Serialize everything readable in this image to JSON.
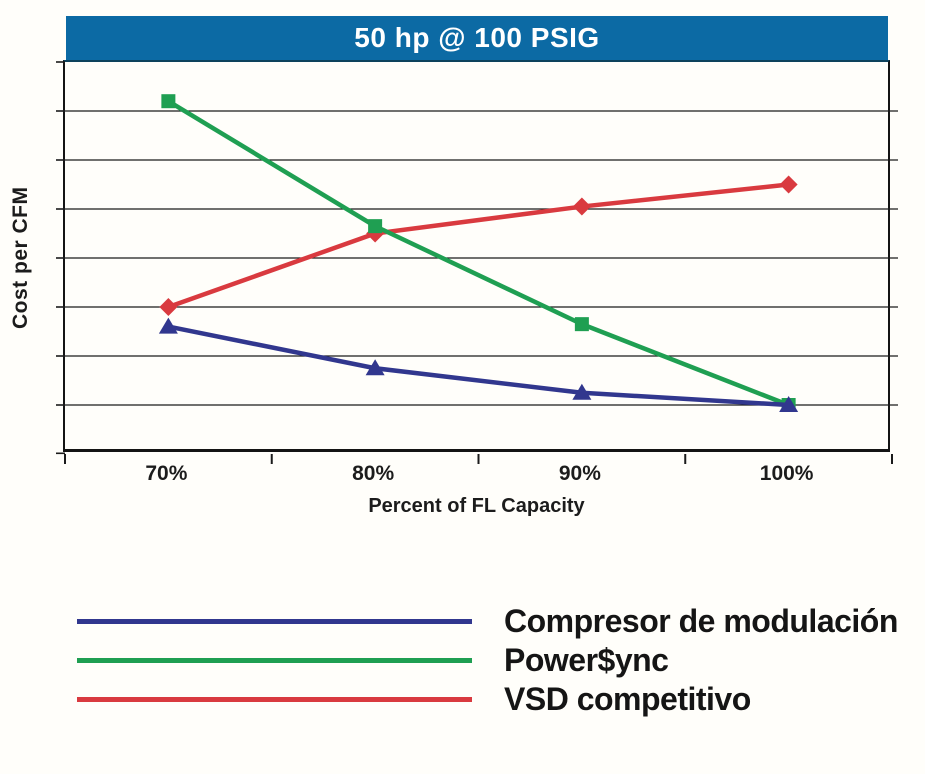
{
  "colors": {
    "title_bar": "#0c6aa4",
    "title_text": "#ffffff",
    "blue": "#31378e",
    "green": "#1f9f52",
    "red": "#d93a3f",
    "grid": "#1b1b1b",
    "text": "#1c1c1c"
  },
  "chart_data": {
    "type": "line",
    "title": "50 hp @ 100 PSIG",
    "x": [
      "70%",
      "80%",
      "90%",
      "100%"
    ],
    "xlabel": "Percent of FL Capacity",
    "ylabel": "Cost per CFM",
    "ylim": [
      0,
      8
    ],
    "y_tick_labels_shown": false,
    "horizontal_gridlines": 7,
    "grid": "horizontal-only",
    "legend_position": "below-chart",
    "series": [
      {
        "name": "Compresor de modulación",
        "color_key": "blue",
        "marker": "triangle",
        "values": [
          2.6,
          1.75,
          1.25,
          1.0
        ]
      },
      {
        "name": "Power$ync",
        "color_key": "green",
        "marker": "square",
        "values": [
          7.2,
          4.65,
          2.65,
          1.0
        ]
      },
      {
        "name": "VSD competitivo",
        "color_key": "red",
        "marker": "diamond",
        "values": [
          3.0,
          4.5,
          5.05,
          5.5
        ]
      }
    ]
  }
}
